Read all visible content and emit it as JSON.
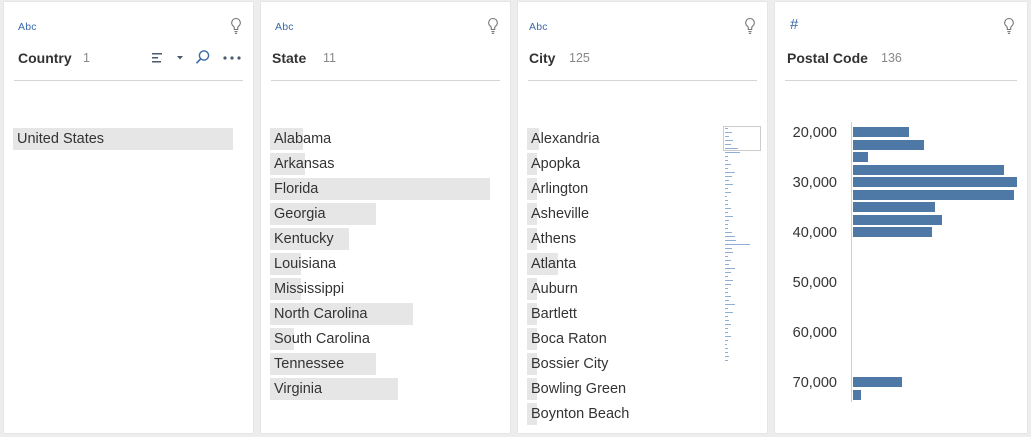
{
  "country": {
    "type_label": "Abc",
    "icon": "lightbulb-icon",
    "name": "Country",
    "count": "1",
    "tools": [
      "sort-icon",
      "chevron-down-icon",
      "search-icon",
      "more-icon"
    ],
    "values": [
      {
        "label": "United States",
        "fraction": 1.0
      }
    ]
  },
  "state": {
    "type_label": "Abc",
    "icon": "lightbulb-icon",
    "name": "State",
    "count": "11",
    "values": [
      {
        "label": "Alabama",
        "fraction": 0.15
      },
      {
        "label": "Arkansas",
        "fraction": 0.16
      },
      {
        "label": "Florida",
        "fraction": 1.0
      },
      {
        "label": "Georgia",
        "fraction": 0.48
      },
      {
        "label": "Kentucky",
        "fraction": 0.36
      },
      {
        "label": "Louisiana",
        "fraction": 0.14
      },
      {
        "label": "Mississippi",
        "fraction": 0.14
      },
      {
        "label": "North Carolina",
        "fraction": 0.65
      },
      {
        "label": "South Carolina",
        "fraction": 0.11
      },
      {
        "label": "Tennessee",
        "fraction": 0.48
      },
      {
        "label": "Virginia",
        "fraction": 0.58
      }
    ]
  },
  "city": {
    "type_label": "Abc",
    "icon": "lightbulb-icon",
    "name": "City",
    "count": "125",
    "values": [
      {
        "label": "Alexandria",
        "fraction": 0.11
      },
      {
        "label": "Apopka",
        "fraction": 0.03
      },
      {
        "label": "Arlington",
        "fraction": 0.03
      },
      {
        "label": "Asheville",
        "fraction": 0.03
      },
      {
        "label": "Athens",
        "fraction": 0.03
      },
      {
        "label": "Atlanta",
        "fraction": 0.28
      },
      {
        "label": "Auburn",
        "fraction": 0.03
      },
      {
        "label": "Bartlett",
        "fraction": 0.03
      },
      {
        "label": "Boca Raton",
        "fraction": 0.03
      },
      {
        "label": "Bossier City",
        "fraction": 0.03
      },
      {
        "label": "Bowling Green",
        "fraction": 0.03
      },
      {
        "label": "Boynton Beach",
        "fraction": 0.06
      }
    ],
    "mini_bars": [
      0.1,
      0.25,
      0.15,
      0.3,
      0.2,
      0.45,
      0.55,
      0.1,
      0.1,
      0.2,
      0.1,
      0.35,
      0.25,
      0.15,
      0.3,
      0.1,
      0.2,
      0.05,
      0.1,
      0.1,
      0.2,
      0.1,
      0.3,
      0.15,
      0.1,
      0.1,
      0.25,
      0.35,
      0.4,
      0.9,
      0.25,
      0.3,
      0.1,
      0.2,
      0.15,
      0.35,
      0.2,
      0.1,
      0.3,
      0.2,
      0.1,
      0.1,
      0.2,
      0.15,
      0.35,
      0.1,
      0.3,
      0.1,
      0.15,
      0.2,
      0.1,
      0.1,
      0.2,
      0.1,
      0.05,
      0.1,
      0.1,
      0.15,
      0.1
    ]
  },
  "postal": {
    "type_label": "#",
    "icon": "lightbulb-icon",
    "name": "Postal Code",
    "count": "136",
    "chart_data": {
      "type": "bar",
      "ticks": [
        "20,000",
        "30,000",
        "40,000",
        "50,000",
        "60,000",
        "70,000"
      ],
      "tick_values": [
        20000,
        30000,
        40000,
        50000,
        60000,
        70000
      ],
      "ylim": [
        18000,
        75000
      ],
      "bin_width": 2500,
      "bins": [
        {
          "start": 20000,
          "value": 34
        },
        {
          "start": 22500,
          "value": 43
        },
        {
          "start": 25000,
          "value": 9
        },
        {
          "start": 27500,
          "value": 92
        },
        {
          "start": 30000,
          "value": 100
        },
        {
          "start": 32500,
          "value": 98
        },
        {
          "start": 35000,
          "value": 50
        },
        {
          "start": 37500,
          "value": 54
        },
        {
          "start": 40000,
          "value": 48
        },
        {
          "start": 70000,
          "value": 30
        },
        {
          "start": 72500,
          "value": 5
        }
      ]
    }
  }
}
